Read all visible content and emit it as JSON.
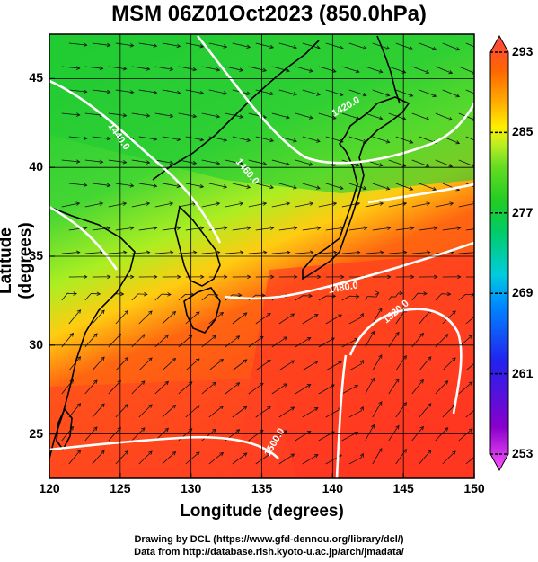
{
  "title": "MSM 06Z01Oct2023 (850.0hPa)",
  "xlabel": "Longitude (degrees)",
  "ylabel": "Latitude  (degrees)",
  "x_ticks": [
    "120",
    "125",
    "130",
    "135",
    "140",
    "145",
    "150"
  ],
  "y_ticks": [
    "25",
    "30",
    "35",
    "40",
    "45"
  ],
  "colorbar": {
    "ticks": [
      "293",
      "285",
      "277",
      "269",
      "261",
      "253"
    ],
    "range": [
      253,
      293
    ],
    "colors": [
      "#ff55ff",
      "#8800cc",
      "#2222ee",
      "#0088ff",
      "#00ccdd",
      "#00cc66",
      "#22cc22",
      "#66dd22",
      "#bbee22",
      "#ffee00",
      "#ffaa00",
      "#ff6600",
      "#ff3322",
      "#ff5555"
    ]
  },
  "contour_labels": [
    "1440.0",
    "1420.0",
    "1460.0",
    "1480.0",
    "1520.0",
    "1500.0"
  ],
  "credits": [
    "Drawing by DCL (https://www.gfd-dennou.org/library/dcl/)",
    "Data from http://database.rish.kyoto-u.ac.jp/arch/jmadata/"
  ],
  "map": {
    "lon_range": [
      120,
      150
    ],
    "lat_range": [
      22.5,
      47.5
    ],
    "grid_lon": [
      120,
      125,
      130,
      135,
      140,
      145,
      150
    ],
    "grid_lat": [
      25,
      30,
      35,
      40,
      45
    ]
  }
}
